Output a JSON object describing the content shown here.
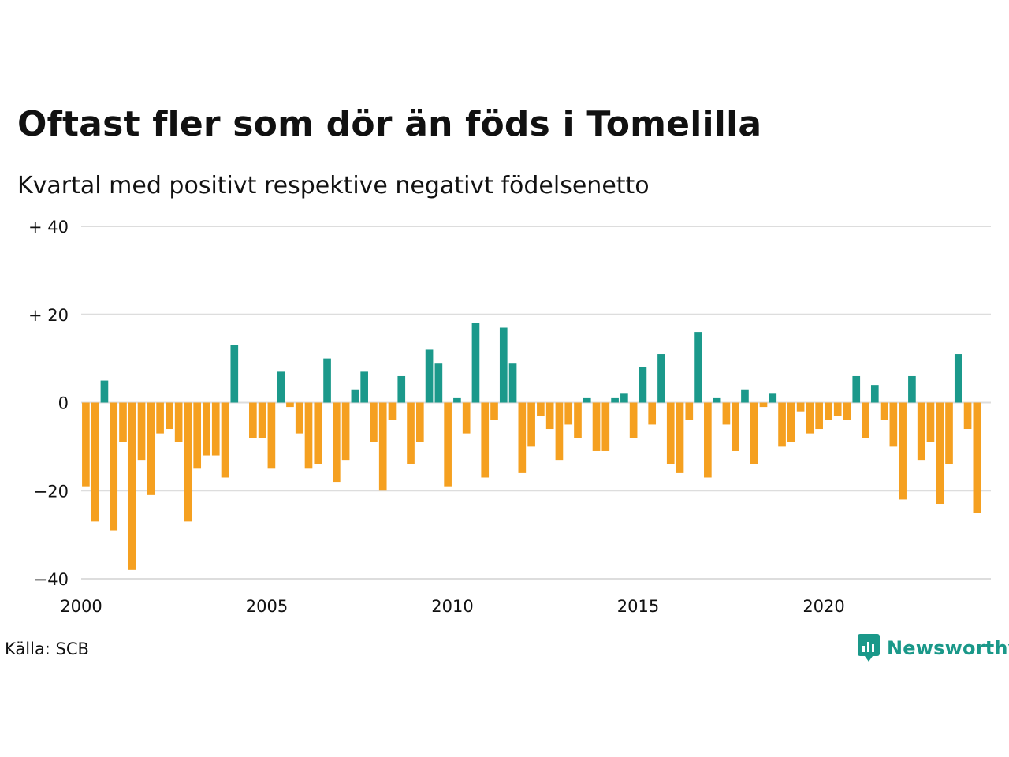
{
  "title": "Oftast fler som dör än föds i Tomelilla",
  "subtitle": "Kvartal med positivt respektive negativt födelsenetto",
  "source": "Källa: SCB",
  "brand": {
    "name": "Newsworthy",
    "icon": "newsworthy-logo-icon",
    "color": "#1a9889"
  },
  "colors": {
    "positive": "#1b998b",
    "negative": "#f5a020",
    "grid": "#dddddd"
  },
  "chart_data": {
    "type": "bar",
    "x_start": 2000,
    "quarters_per_year": 4,
    "xlim": [
      2000,
      2024.5
    ],
    "ylim": [
      -40,
      40
    ],
    "yticks": [
      {
        "value": 40,
        "label": "+ 40"
      },
      {
        "value": 20,
        "label": "+ 20"
      },
      {
        "value": 0,
        "label": "0"
      },
      {
        "value": -20,
        "label": "−20"
      },
      {
        "value": -40,
        "label": "−40"
      }
    ],
    "xticks": [
      {
        "value": 2000,
        "label": "2000"
      },
      {
        "value": 2005,
        "label": "2005"
      },
      {
        "value": 2010,
        "label": "2010"
      },
      {
        "value": 2015,
        "label": "2015"
      },
      {
        "value": 2020,
        "label": "2020"
      }
    ],
    "grid": true,
    "legend": "none",
    "values": [
      -19,
      -27,
      5,
      -29,
      -9,
      -38,
      -13,
      -21,
      -7,
      -6,
      -9,
      -27,
      -15,
      -12,
      -12,
      -17,
      13,
      0,
      -8,
      -8,
      -15,
      7,
      -1,
      -7,
      -15,
      -14,
      10,
      -18,
      -13,
      3,
      7,
      -9,
      -20,
      -4,
      6,
      -14,
      -9,
      12,
      9,
      -19,
      1,
      -7,
      18,
      -17,
      -4,
      17,
      9,
      -16,
      -10,
      -3,
      -6,
      -13,
      -5,
      -8,
      1,
      -11,
      -11,
      1,
      2,
      -8,
      8,
      -5,
      11,
      -14,
      -16,
      -4,
      16,
      -17,
      1,
      -5,
      -11,
      3,
      -14,
      -1,
      2,
      -10,
      -9,
      -2,
      -7,
      -6,
      -4,
      -3,
      -4,
      6,
      -8,
      4,
      -4,
      -10,
      -22,
      6,
      -13,
      -9,
      -23,
      -14,
      11,
      -6,
      -25
    ]
  }
}
